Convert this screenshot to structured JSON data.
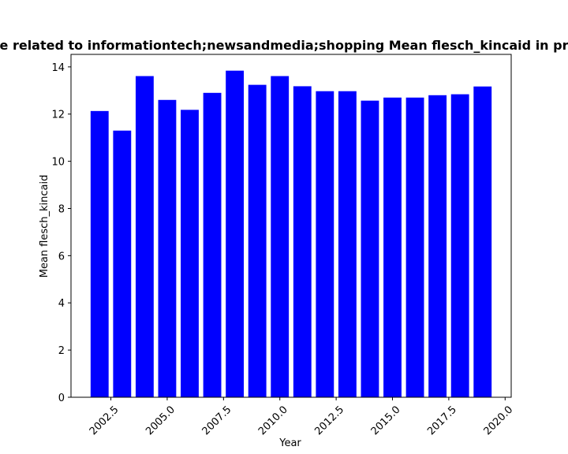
{
  "chart_data": {
    "type": "bar",
    "title": "Mean flesch_kincaid of text related to informationtech;newsandmedia;shopping Mean flesch_kincaid in previous years",
    "title_visible": "e related to informationtech;newsandmedia;shopping Mean flesch_kincaid in pr",
    "xlabel": "Year",
    "ylabel": "Mean flesch_kincaid",
    "x": [
      2002,
      2003,
      2004,
      2005,
      2006,
      2007,
      2008,
      2009,
      2010,
      2011,
      2012,
      2013,
      2014,
      2015,
      2016,
      2017,
      2018,
      2019
    ],
    "values": [
      12.13,
      11.3,
      13.61,
      12.6,
      12.18,
      12.9,
      13.84,
      13.24,
      13.61,
      13.18,
      12.97,
      12.97,
      12.57,
      12.7,
      12.7,
      12.8,
      12.84,
      13.17
    ],
    "xlim": [
      2000.73,
      2020.27
    ],
    "ylim": [
      0,
      14.53
    ],
    "bar_width": 0.8,
    "xticks": [
      2002.5,
      2005.0,
      2007.5,
      2010.0,
      2012.5,
      2015.0,
      2017.5,
      2020.0
    ],
    "xtick_labels": [
      "2002.5",
      "2005.0",
      "2007.5",
      "2010.0",
      "2012.5",
      "2015.0",
      "2017.5",
      "2020.0"
    ],
    "yticks": [
      0,
      2,
      4,
      6,
      8,
      10,
      12,
      14
    ],
    "ytick_labels": [
      "0",
      "2",
      "4",
      "6",
      "8",
      "10",
      "12",
      "14"
    ],
    "bar_color": "#0000ff",
    "grid": false,
    "legend": "none"
  }
}
